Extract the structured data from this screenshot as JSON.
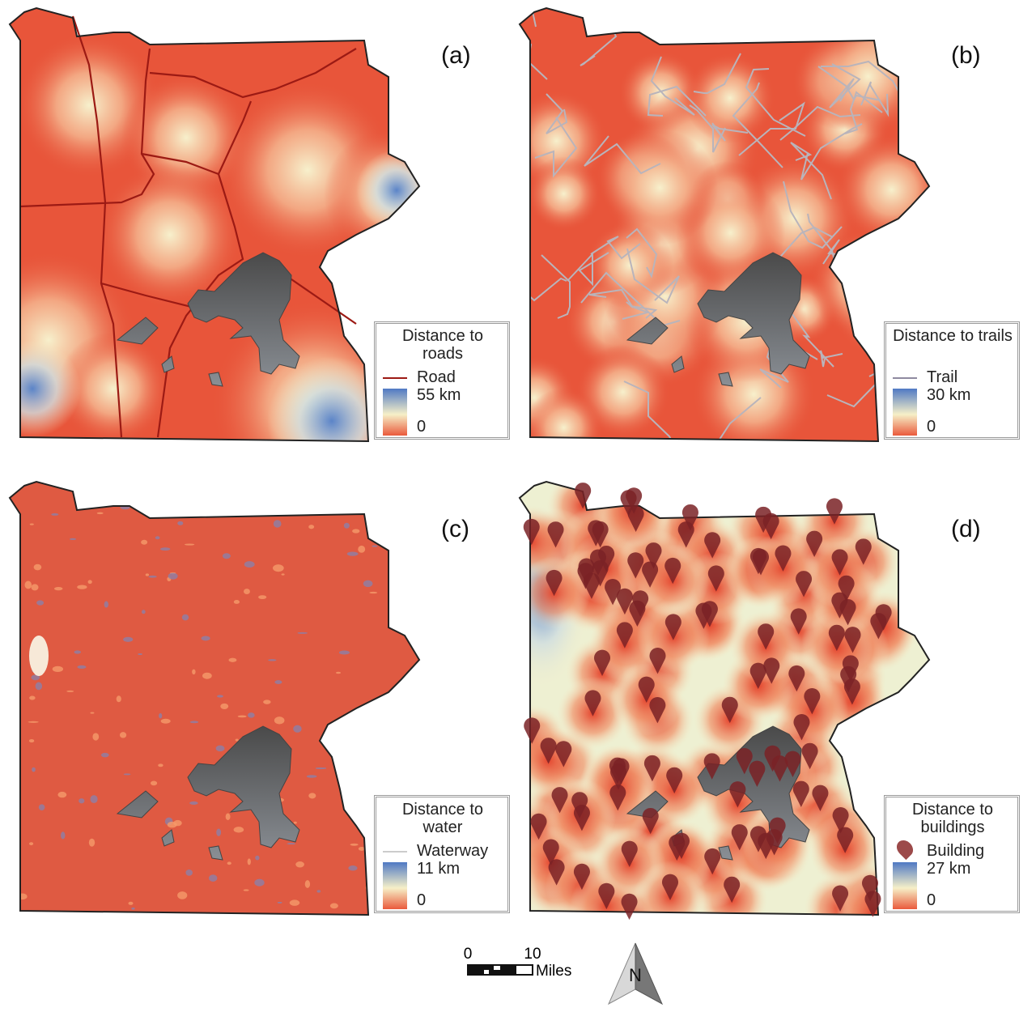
{
  "panels": [
    {
      "label": "(a)",
      "legend": {
        "title": "Distance to roads",
        "feature": "Road",
        "max": "55 km",
        "min": "0"
      }
    },
    {
      "label": "(b)",
      "legend": {
        "title": "Distance to trails",
        "feature": "Trail",
        "max": "30 km",
        "min": "0"
      }
    },
    {
      "label": "(c)",
      "legend": {
        "title": "Distance to water",
        "feature": "Waterway",
        "max": "11 km",
        "min": "0"
      }
    },
    {
      "label": "(d)",
      "legend": {
        "title": "Distance to buildings",
        "feature": "Building",
        "max": "27 km",
        "min": "0"
      }
    }
  ],
  "scale_bar": {
    "start": "0",
    "end": "10",
    "unit": "Miles"
  },
  "north_arrow": "N"
}
